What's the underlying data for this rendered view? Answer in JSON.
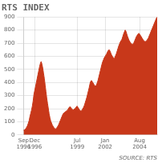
{
  "chart_data": {
    "type": "area",
    "title": "RTS INDEX",
    "annotations": [
      "SOURCE: RTS"
    ],
    "color": "#c8381a",
    "categories": [
      "Sep\n1996",
      null,
      null,
      null,
      null,
      null,
      null,
      null,
      null,
      null,
      null,
      null,
      null,
      null,
      "Dec\n1996",
      null,
      null,
      null,
      null,
      null,
      null,
      null,
      null,
      null,
      null,
      null,
      null,
      null,
      null,
      null,
      null,
      null,
      null,
      null,
      null,
      null,
      null,
      null,
      null,
      null,
      null,
      null,
      null,
      null,
      null,
      null,
      null,
      null,
      null,
      null,
      null,
      null,
      null,
      null,
      null,
      null,
      null,
      null,
      null,
      null,
      null,
      null,
      null,
      null,
      null,
      null,
      null,
      "Jul\n1999",
      null,
      null,
      null,
      null,
      null,
      null,
      null,
      null,
      null,
      null,
      null,
      null,
      null,
      null,
      null,
      null,
      null,
      null,
      null,
      null,
      null,
      null,
      null,
      null,
      null,
      null,
      null,
      null,
      null,
      null,
      null,
      null,
      null,
      null,
      "Jan\n2002",
      null,
      null,
      null,
      null,
      null,
      null,
      null,
      null,
      null,
      null,
      null,
      null,
      null,
      null,
      null,
      null,
      null,
      null,
      null,
      null,
      null,
      null,
      null,
      null,
      null,
      null,
      null,
      null,
      null,
      null,
      null,
      null,
      null,
      null,
      null,
      null,
      null,
      null,
      null,
      null,
      null,
      null,
      "Aug\n2004",
      null,
      null,
      null,
      null,
      null,
      null,
      null,
      null,
      null,
      null,
      null,
      null,
      null,
      null,
      null,
      null,
      null,
      null,
      null,
      null,
      null,
      null
    ],
    "values": [
      35,
      38,
      42,
      50,
      60,
      72,
      90,
      110,
      140,
      165,
      190,
      220,
      260,
      310,
      340,
      370,
      400,
      430,
      460,
      490,
      520,
      545,
      560,
      540,
      510,
      470,
      430,
      380,
      330,
      280,
      240,
      200,
      160,
      130,
      105,
      90,
      75,
      65,
      55,
      48,
      45,
      50,
      58,
      68,
      80,
      95,
      110,
      125,
      140,
      155,
      165,
      170,
      175,
      180,
      185,
      190,
      200,
      210,
      215,
      210,
      200,
      195,
      190,
      195,
      200,
      205,
      215,
      220,
      210,
      200,
      190,
      185,
      180,
      190,
      200,
      210,
      225,
      245,
      265,
      285,
      310,
      335,
      360,
      390,
      410,
      415,
      405,
      395,
      385,
      375,
      370,
      380,
      395,
      415,
      440,
      465,
      490,
      515,
      540,
      560,
      575,
      590,
      600,
      610,
      620,
      635,
      645,
      650,
      640,
      625,
      610,
      600,
      590,
      580,
      590,
      605,
      620,
      640,
      660,
      680,
      695,
      710,
      720,
      730,
      750,
      770,
      785,
      800,
      790,
      770,
      750,
      735,
      720,
      710,
      700,
      695,
      690,
      695,
      705,
      720,
      735,
      750,
      760,
      770,
      775,
      770,
      760,
      750,
      740,
      730,
      720,
      715,
      710,
      715,
      720,
      730,
      740,
      755,
      770,
      785,
      800,
      815,
      830,
      845,
      860,
      875,
      890,
      900
    ],
    "ylim": [
      0,
      900
    ],
    "yticks": [
      0,
      100,
      200,
      300,
      400,
      500,
      600,
      700,
      800,
      900
    ],
    "grid": true
  }
}
